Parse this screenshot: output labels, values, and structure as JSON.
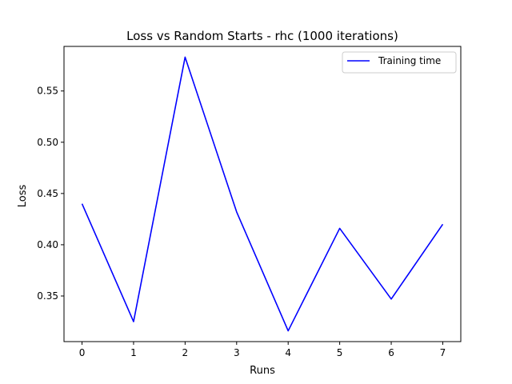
{
  "chart_data": {
    "type": "line",
    "title": "Loss vs Random Starts - rhc (1000 iterations)",
    "xlabel": "Runs",
    "ylabel": "Loss",
    "x": [
      0,
      1,
      2,
      3,
      4,
      5,
      6,
      7
    ],
    "series": [
      {
        "name": "Training time",
        "color": "#0000ff",
        "values": [
          0.44,
          0.325,
          0.583,
          0.432,
          0.316,
          0.416,
          0.347,
          0.42
        ]
      }
    ],
    "xlim": [
      -0.35,
      7.35
    ],
    "ylim": [
      0.3055,
      0.5935
    ],
    "xticks": [
      0,
      1,
      2,
      3,
      4,
      5,
      6,
      7
    ],
    "xtick_labels": [
      "0",
      "1",
      "2",
      "3",
      "4",
      "5",
      "6",
      "7"
    ],
    "yticks": [
      0.35,
      0.4,
      0.45,
      0.5,
      0.55
    ],
    "ytick_labels": [
      "0.35",
      "0.40",
      "0.45",
      "0.50",
      "0.55"
    ],
    "grid": false,
    "legend_position": "top-right"
  }
}
